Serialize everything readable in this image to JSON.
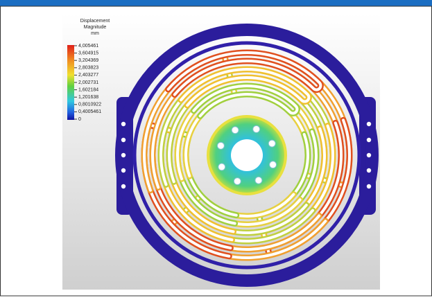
{
  "legend": {
    "title_line1": "Displacement",
    "title_line2": "Magnitude",
    "unit": "mm",
    "labels": [
      "4,005461",
      "3,604915",
      "3,204369",
      "2,803823",
      "2,403277",
      "2,002731",
      "1,602184",
      "1,201638",
      "0,8010922",
      "0,4005461",
      "0"
    ]
  }
}
